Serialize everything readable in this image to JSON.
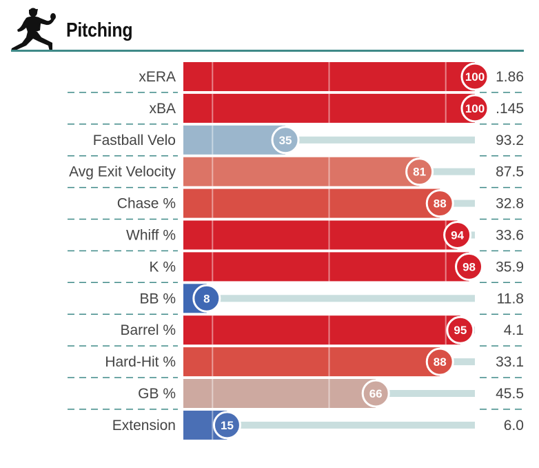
{
  "header": {
    "title": "Pitching",
    "icon": "pitcher-silhouette-icon",
    "rule_color": "#3f8a88"
  },
  "colors": {
    "track": "#c9dede",
    "divider": "#3f8a88"
  },
  "chart_data": {
    "type": "bar",
    "orientation": "horizontal",
    "xlim": [
      0,
      100
    ],
    "gridlines": [
      10,
      50,
      90
    ],
    "categories": [
      "xERA",
      "xBA",
      "Fastball Velo",
      "Avg Exit Velocity",
      "Chase %",
      "Whiff %",
      "K %",
      "BB %",
      "Barrel %",
      "Hard-Hit %",
      "GB %",
      "Extension"
    ],
    "series": [
      {
        "values": [
          100,
          100,
          35,
          81,
          88,
          94,
          98,
          8,
          95,
          88,
          66,
          15
        ]
      }
    ],
    "badge_labels": [
      "100",
      "100",
      "35",
      "81",
      "88",
      "94",
      "98",
      "8",
      "95",
      "88",
      "66",
      "15"
    ],
    "stat_values": [
      "1.86",
      ".145",
      "93.2",
      "87.5",
      "32.8",
      "33.6",
      "35.9",
      "11.8",
      "4.1",
      "33.1",
      "45.5",
      "6.0"
    ],
    "bar_colors": [
      "#d51f2b",
      "#d51f2b",
      "#9bb6cc",
      "#dc7466",
      "#d94f45",
      "#d51f2b",
      "#d51f2b",
      "#3f68b4",
      "#d51f2b",
      "#d94f45",
      "#cda9a0",
      "#4a6fb5"
    ]
  }
}
